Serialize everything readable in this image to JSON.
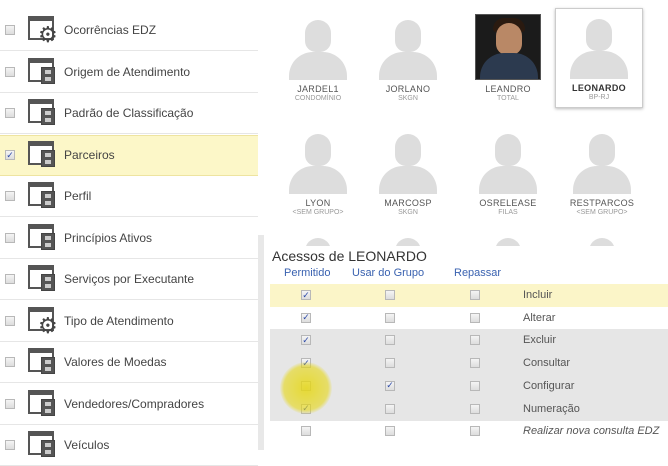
{
  "sidebar": {
    "items": [
      {
        "label": "Ocorrências EDZ",
        "icon": "gear-window-icon",
        "checked": false
      },
      {
        "label": "Origem de Atendimento",
        "icon": "cabinet-window-icon",
        "checked": false
      },
      {
        "label": "Padrão de Classificação",
        "icon": "cabinet-window-icon",
        "checked": false
      },
      {
        "label": "Parceiros",
        "icon": "cabinet-window-icon",
        "checked": true,
        "selected": true
      },
      {
        "label": "Perfil",
        "icon": "cabinet-window-icon",
        "checked": false
      },
      {
        "label": "Princípios Ativos",
        "icon": "cabinet-window-icon",
        "checked": false
      },
      {
        "label": "Serviços por Executante",
        "icon": "cabinet-window-icon",
        "checked": false
      },
      {
        "label": "Tipo de Atendimento",
        "icon": "gear-window-icon",
        "checked": false
      },
      {
        "label": "Valores de Moedas",
        "icon": "cabinet-window-icon",
        "checked": false
      },
      {
        "label": "Vendedores/Compradores",
        "icon": "cabinet-window-icon",
        "checked": false
      },
      {
        "label": "Veículos",
        "icon": "cabinet-window-icon",
        "checked": false
      }
    ]
  },
  "users": [
    {
      "name": "JARDEL1",
      "group": "CONDOMÍNIO"
    },
    {
      "name": "JORLANO",
      "group": "SKGN"
    },
    {
      "name": "LEANDRO",
      "group": "TOTAL",
      "photo": true
    },
    {
      "name": "LEONARDO",
      "group": "BP-RJ",
      "selected": true
    },
    {
      "name": "LYON",
      "group": "<SEM GRUPO>"
    },
    {
      "name": "MARCOSP",
      "group": "SKGN"
    },
    {
      "name": "OSRELEASE",
      "group": "FILAS"
    },
    {
      "name": "RESTPARCOS",
      "group": "<SEM GRUPO>"
    }
  ],
  "access": {
    "title": "Acessos de LEONARDO",
    "headers": [
      "Permitido",
      "Usar do Grupo",
      "Repassar"
    ],
    "rows": [
      {
        "label": "Incluir",
        "permitido": true,
        "grupo": false,
        "repassar": false
      },
      {
        "label": "Alterar",
        "permitido": true,
        "grupo": false,
        "repassar": false
      },
      {
        "label": "Excluir",
        "permitido": true,
        "grupo": false,
        "repassar": false
      },
      {
        "label": "Consultar",
        "permitido": true,
        "grupo": false,
        "repassar": false
      },
      {
        "label": "Configurar",
        "permitido": false,
        "grupo": true,
        "repassar": false
      },
      {
        "label": "Numeração",
        "permitido": true,
        "grupo": false,
        "repassar": false
      },
      {
        "label": "Realizar nova consulta EDZ",
        "permitido": false,
        "grupo": false,
        "repassar": false,
        "italic": true
      }
    ]
  },
  "colors": {
    "highlight": "#fcf7c8",
    "link": "#3a62b0",
    "cursor": "#e6d714"
  }
}
